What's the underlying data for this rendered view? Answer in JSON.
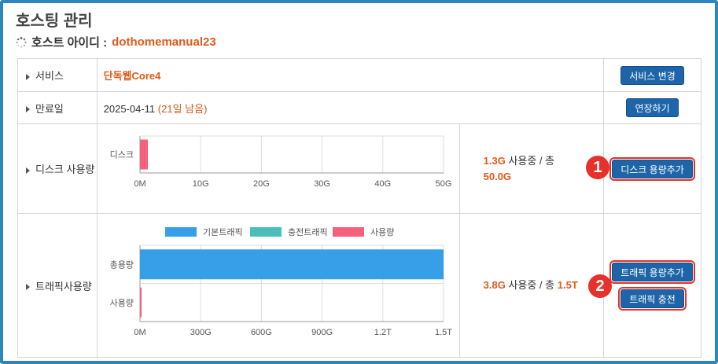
{
  "page": {
    "title": "호스팅 관리",
    "host_label": "호스트 아이디 :",
    "host_id": "dothomemanual23"
  },
  "service": {
    "label": "서비스",
    "value": "단독웹Core4",
    "button": "서비스 변경"
  },
  "expiry": {
    "label": "만료일",
    "date": "2025-04-11",
    "remaining": "(21일 남음)",
    "button": "연장하기"
  },
  "disk": {
    "label": "디스크 사용량",
    "used": "1.3G",
    "used_text": "사용중 / 총",
    "total": "50.0G",
    "button": "디스크 용량추가",
    "badge": "1"
  },
  "traffic": {
    "label": "트래픽사용량",
    "used": "3.8G",
    "used_text": "사용중 / 총",
    "total": "1.5T",
    "button_add": "트래픽 용량추가",
    "button_charge": "트래픽 충전",
    "badge": "2"
  },
  "chart_data": [
    {
      "type": "bar",
      "orientation": "horizontal",
      "categories": [
        "디스크"
      ],
      "series": [
        {
          "values": [
            1.3
          ],
          "color": "#f5607d"
        }
      ],
      "xlim": [
        0,
        50
      ],
      "x_ticks": [
        "0M",
        "10G",
        "20G",
        "30G",
        "40G",
        "50G"
      ],
      "grid": true
    },
    {
      "type": "bar",
      "orientation": "horizontal",
      "categories": [
        "총용량",
        "사용량"
      ],
      "legend_position": "top",
      "legend": [
        {
          "name": "기본트래픽",
          "color": "#369fe8"
        },
        {
          "name": "충전트래픽",
          "color": "#4bbfb7"
        },
        {
          "name": "사용량",
          "color": "#f5607d"
        }
      ],
      "series": [
        {
          "name": "기본트래픽",
          "values": [
            1500,
            0
          ],
          "color": "#369fe8"
        },
        {
          "name": "사용량",
          "values": [
            0,
            3.8
          ],
          "color": "#f5607d"
        }
      ],
      "xlim": [
        0,
        1500
      ],
      "x_ticks": [
        "0M",
        "300G",
        "600G",
        "900G",
        "1.2T",
        "1.5T"
      ],
      "grid": true
    }
  ]
}
